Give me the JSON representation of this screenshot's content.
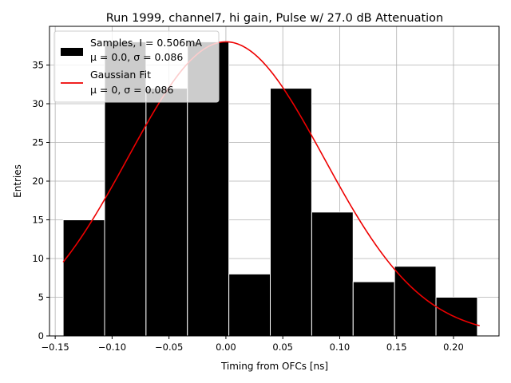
{
  "chart_data": {
    "type": "bar",
    "title": "Run 1999, channel7, hi gain, Pulse w/ 27.0 dB Attenuation",
    "xlabel": "Timing from OFCs [ns]",
    "ylabel": "Entries",
    "xlim": [
      -0.155,
      0.24
    ],
    "ylim": [
      0,
      40
    ],
    "xticks": [
      "−0.15",
      "−0.10",
      "−0.05",
      "0.00",
      "0.05",
      "0.10",
      "0.15",
      "0.20"
    ],
    "xtick_values": [
      -0.15,
      -0.1,
      -0.05,
      0.0,
      0.05,
      0.1,
      0.15,
      0.2
    ],
    "yticks": [
      "0",
      "5",
      "10",
      "15",
      "20",
      "25",
      "30",
      "35"
    ],
    "ytick_values": [
      0,
      5,
      10,
      15,
      20,
      25,
      30,
      35
    ],
    "grid": true,
    "legend_location": "upper-left",
    "histogram": {
      "name": "Samples, I = 0.506mA",
      "stats": "μ = 0.0, σ = 0.086",
      "color": "#000000",
      "bin_edges": [
        -0.143,
        -0.1066,
        -0.0702,
        -0.0338,
        0.0026,
        0.039,
        0.0754,
        0.1118,
        0.1482,
        0.1846,
        0.221
      ],
      "counts": [
        15,
        38,
        32,
        38,
        8,
        32,
        16,
        7,
        9,
        5
      ]
    },
    "fit": {
      "name": "Gaussian Fit",
      "stats": "μ = 0, σ = 0.086",
      "color": "#ee0000",
      "mu": 0.0,
      "sigma": 0.086,
      "amplitude": 38,
      "x_range": [
        -0.143,
        0.223
      ]
    }
  }
}
